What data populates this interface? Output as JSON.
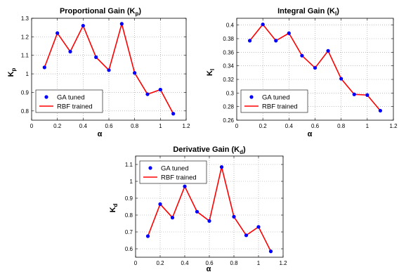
{
  "chart_data": [
    {
      "type": "line",
      "title": "Proportional Gain (K",
      "title_sub": "p",
      "title_suffix": ")",
      "xlabel": "α",
      "ylabel": "K",
      "ylabel_sub": "p",
      "xlim": [
        0,
        1.2
      ],
      "ylim": [
        0.75,
        1.3
      ],
      "xticks": [
        0,
        0.2,
        0.4,
        0.6,
        0.8,
        1,
        1.2
      ],
      "xtick_labels": [
        "0",
        "0.2",
        "0.4",
        "0.6",
        "0.8",
        "1",
        "1.2"
      ],
      "yticks": [
        0.8,
        0.9,
        1,
        1.1,
        1.2,
        1.3
      ],
      "ytick_labels": [
        "0.8",
        "0.9",
        "1",
        "1.1",
        "1.2",
        "1.3"
      ],
      "grid": true,
      "legend_position": "bottom-left",
      "series": [
        {
          "name": "GA tuned",
          "style": "markers",
          "color": "#0000ff",
          "x": [
            0.1,
            0.2,
            0.3,
            0.4,
            0.5,
            0.6,
            0.7,
            0.8,
            0.9,
            1.0,
            1.1
          ],
          "y": [
            1.035,
            1.22,
            1.12,
            1.26,
            1.09,
            1.02,
            1.27,
            1.005,
            0.89,
            0.915,
            0.785
          ]
        },
        {
          "name": "RBF trained",
          "style": "line",
          "color": "#ff0000",
          "x": [
            0.1,
            0.2,
            0.3,
            0.4,
            0.5,
            0.6,
            0.7,
            0.8,
            0.9,
            1.0,
            1.1
          ],
          "y": [
            1.035,
            1.22,
            1.12,
            1.26,
            1.09,
            1.02,
            1.27,
            1.005,
            0.89,
            0.915,
            0.785
          ]
        }
      ]
    },
    {
      "type": "line",
      "title": "Integral Gain (K",
      "title_sub": "I",
      "title_suffix": ")",
      "xlabel": "α",
      "ylabel": "K",
      "ylabel_sub": "I",
      "xlim": [
        0,
        1.2
      ],
      "ylim": [
        0.26,
        0.41
      ],
      "xticks": [
        0,
        0.2,
        0.4,
        0.6,
        0.8,
        1,
        1.2
      ],
      "xtick_labels": [
        "0",
        "0.2",
        "0.4",
        "0.6",
        "0.8",
        "1",
        "1.2"
      ],
      "yticks": [
        0.26,
        0.28,
        0.3,
        0.32,
        0.34,
        0.36,
        0.38,
        0.4
      ],
      "ytick_labels": [
        "0.26",
        "0.28",
        "0.3",
        "0.32",
        "0.34",
        "0.36",
        "0.38",
        "0.4"
      ],
      "grid": true,
      "legend_position": "bottom-left",
      "series": [
        {
          "name": "GA tuned",
          "style": "markers",
          "color": "#0000ff",
          "x": [
            0.1,
            0.2,
            0.3,
            0.4,
            0.5,
            0.6,
            0.7,
            0.8,
            0.9,
            1.0,
            1.1
          ],
          "y": [
            0.377,
            0.401,
            0.377,
            0.388,
            0.355,
            0.337,
            0.362,
            0.321,
            0.298,
            0.297,
            0.274
          ]
        },
        {
          "name": "RBF trained",
          "style": "line",
          "color": "#ff0000",
          "x": [
            0.1,
            0.2,
            0.3,
            0.4,
            0.5,
            0.6,
            0.7,
            0.8,
            0.9,
            1.0,
            1.1
          ],
          "y": [
            0.377,
            0.401,
            0.377,
            0.388,
            0.355,
            0.337,
            0.362,
            0.321,
            0.298,
            0.297,
            0.274
          ]
        }
      ]
    },
    {
      "type": "line",
      "title": "Derivative Gain (K",
      "title_sub": "d",
      "title_suffix": ")",
      "xlabel": "α",
      "ylabel": "K",
      "ylabel_sub": "d",
      "xlim": [
        0,
        1.2
      ],
      "ylim": [
        0.55,
        1.15
      ],
      "xticks": [
        0,
        0.2,
        0.4,
        0.6,
        0.8,
        1,
        1.2
      ],
      "xtick_labels": [
        "0",
        "0.2",
        "0.4",
        "0.6",
        "0.8",
        "1",
        "1.2"
      ],
      "yticks": [
        0.6,
        0.7,
        0.8,
        0.9,
        1,
        1.1
      ],
      "ytick_labels": [
        "0.6",
        "0.7",
        "0.8",
        "0.9",
        "1",
        "1.1"
      ],
      "grid": true,
      "legend_position": "top-left",
      "series": [
        {
          "name": "GA tuned",
          "style": "markers",
          "color": "#0000ff",
          "x": [
            0.1,
            0.2,
            0.3,
            0.4,
            0.5,
            0.6,
            0.7,
            0.8,
            0.9,
            1.0,
            1.1
          ],
          "y": [
            0.675,
            0.865,
            0.785,
            0.97,
            0.82,
            0.765,
            1.085,
            0.79,
            0.68,
            0.73,
            0.585
          ]
        },
        {
          "name": "RBF trained",
          "style": "line",
          "color": "#ff0000",
          "x": [
            0.1,
            0.2,
            0.3,
            0.4,
            0.5,
            0.6,
            0.7,
            0.8,
            0.9,
            1.0,
            1.1
          ],
          "y": [
            0.675,
            0.865,
            0.785,
            0.97,
            0.82,
            0.765,
            1.085,
            0.79,
            0.68,
            0.73,
            0.585
          ]
        }
      ]
    }
  ]
}
